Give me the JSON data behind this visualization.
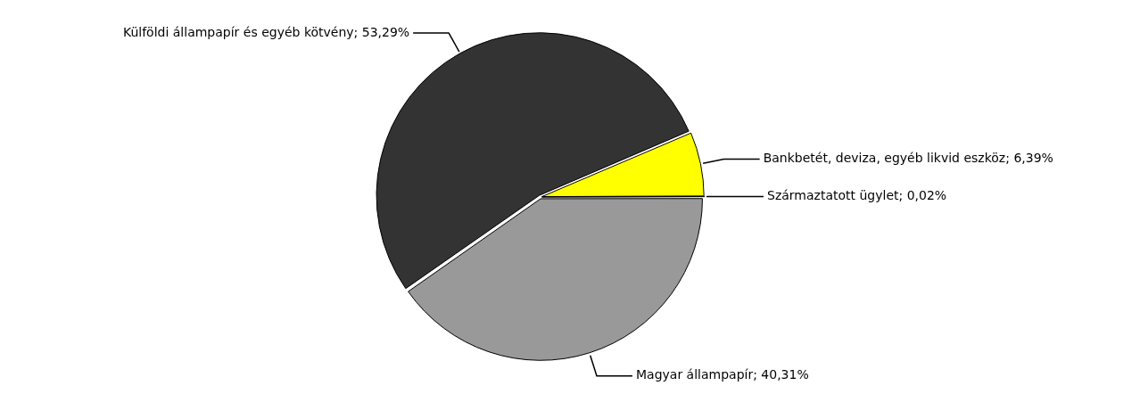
{
  "chart_data": {
    "type": "pie",
    "categories": [
      "Külföldi állampapír és egyéb kötvény",
      "Bankbetét, deviza, egyéb likvid eszköz",
      "Származtatott ügylet",
      "Magyar állampapír"
    ],
    "values": [
      53.29,
      6.39,
      0.02,
      40.31
    ],
    "value_labels": [
      "53,29%",
      "6,39%",
      "0,02%",
      "40,31%"
    ],
    "colors": [
      "#333333",
      "#ffff00",
      "#ffffff",
      "#999999"
    ],
    "legend": false
  }
}
